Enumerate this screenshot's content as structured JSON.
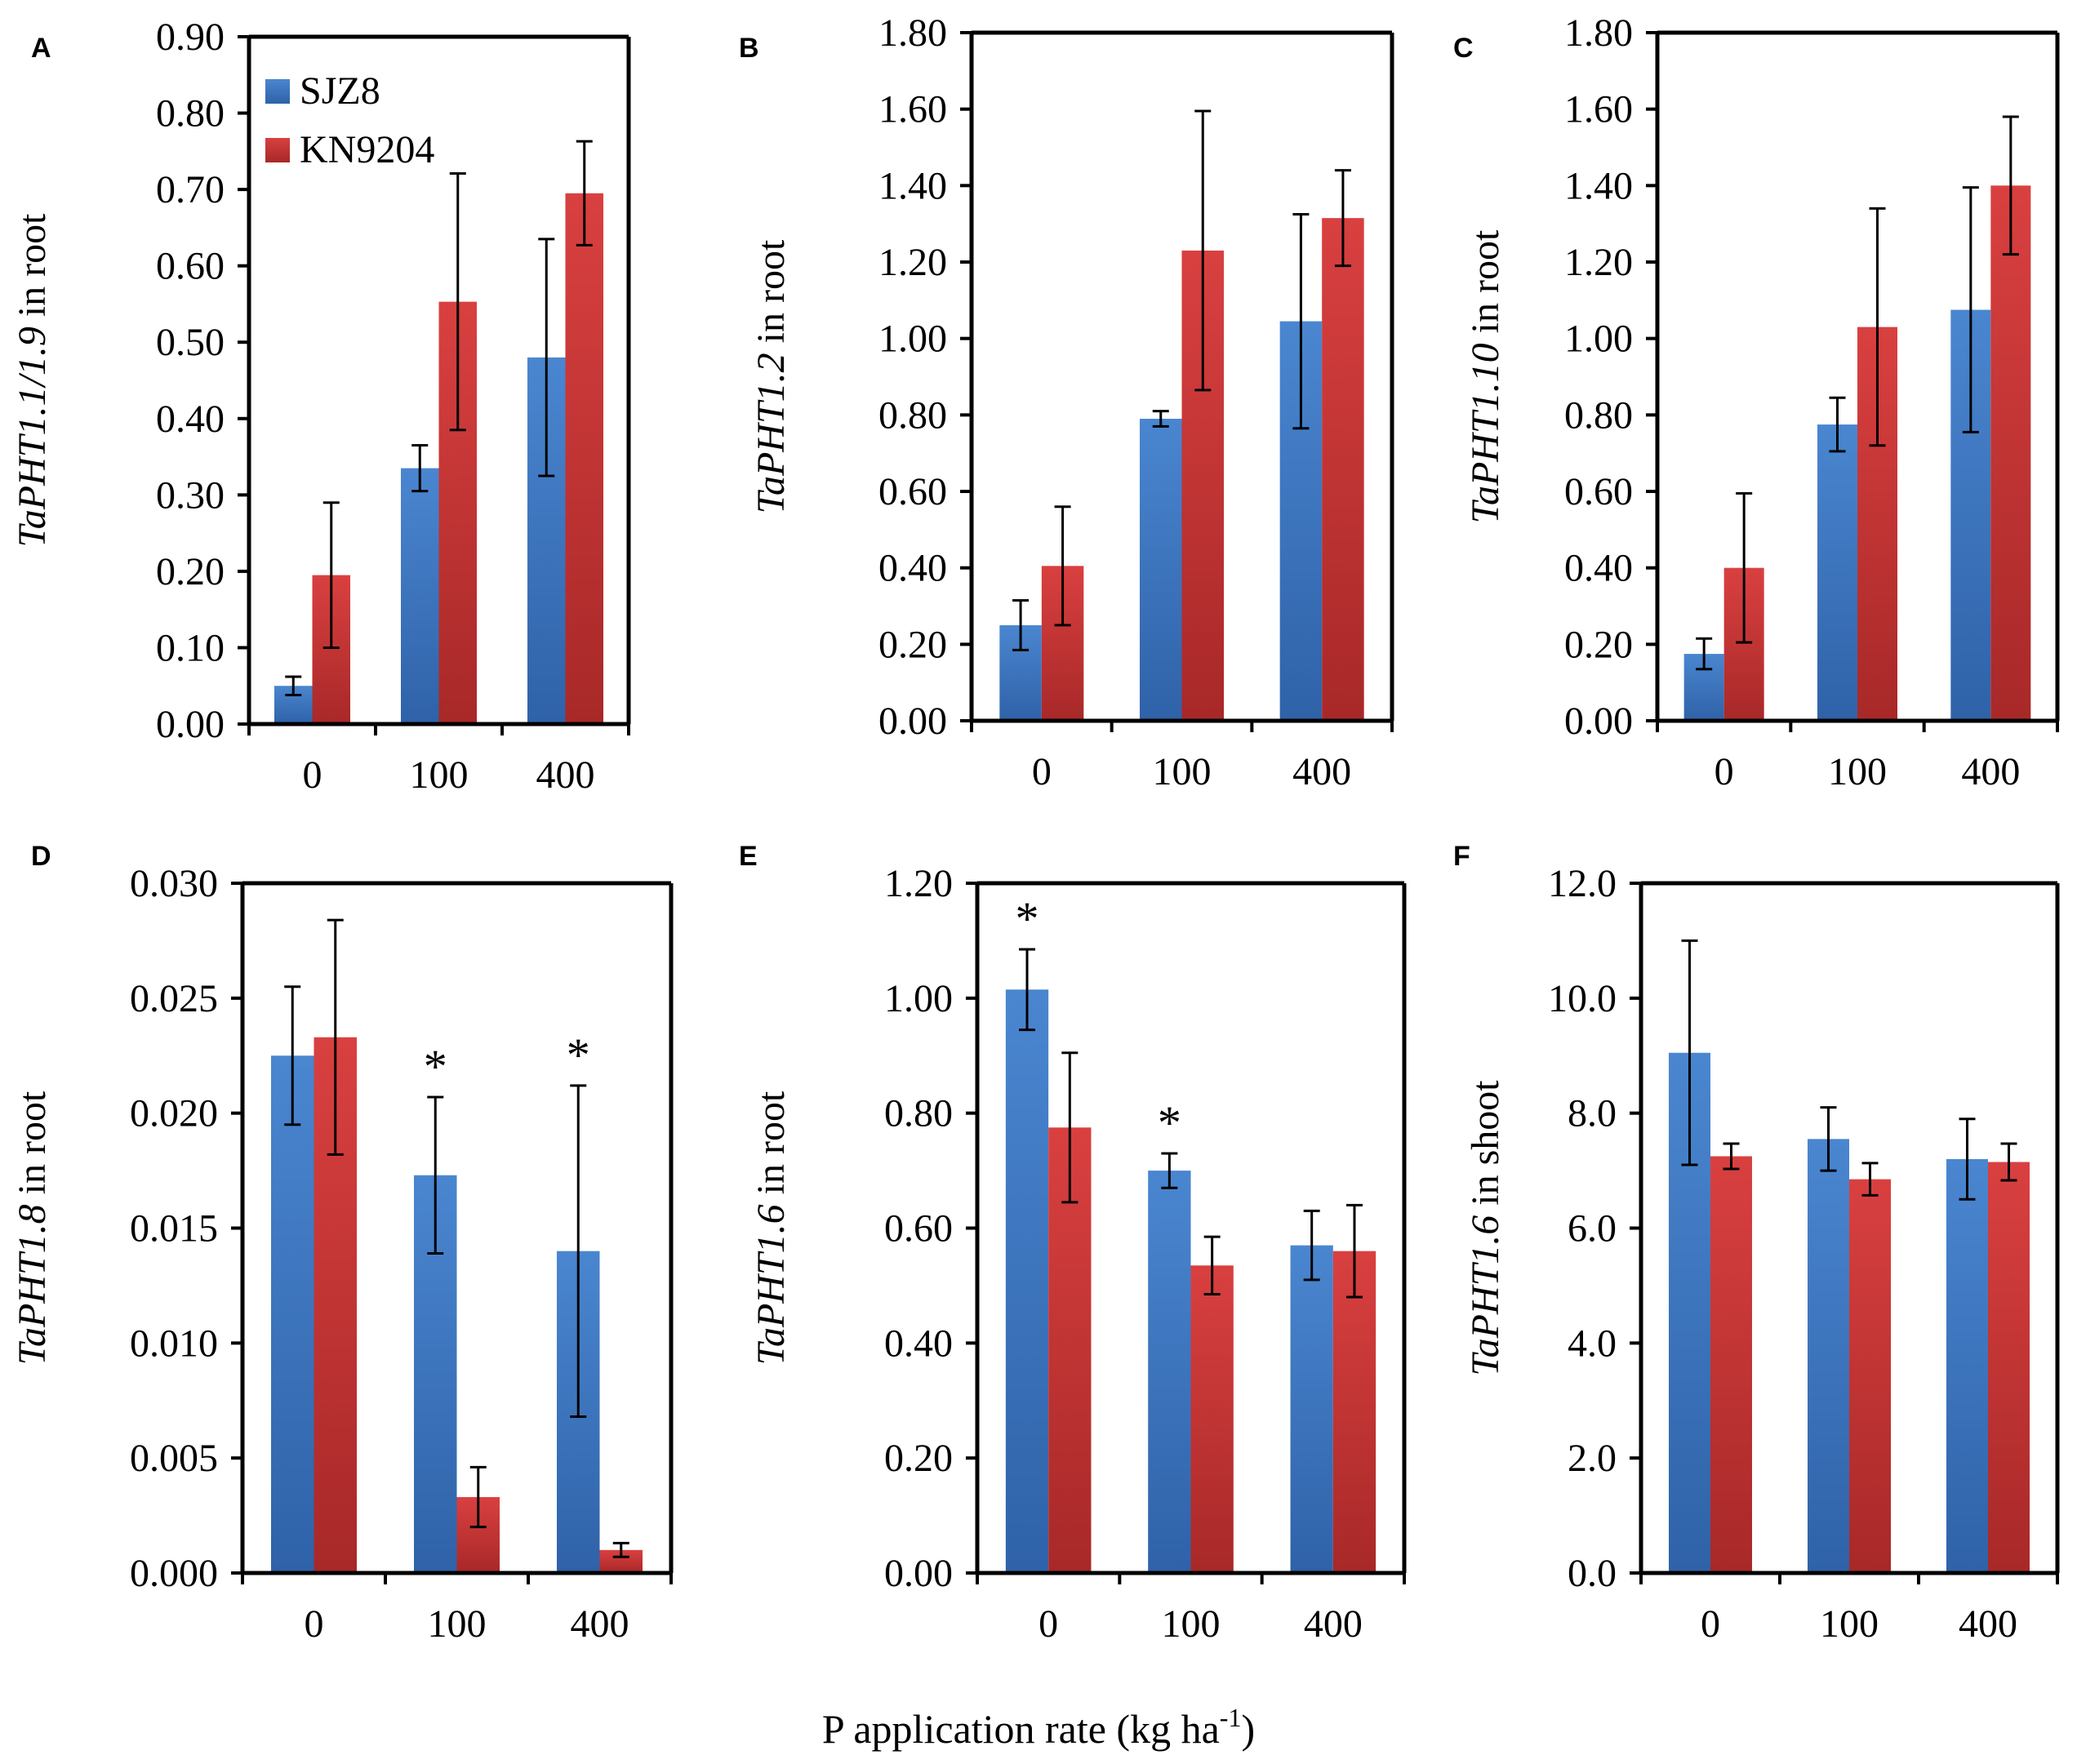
{
  "figure": {
    "xlabel": "P application rate (kg ha",
    "xlabel_sup": "-1",
    "xlabel_close": ")",
    "legend": [
      "SJZ8",
      "KN9204"
    ],
    "colors": {
      "SJZ8": "#3a78c4",
      "KN9204": "#cc3333"
    }
  },
  "chart_data": [
    {
      "type": "bar",
      "panel": "A",
      "ylabel_italic": "TaPHT1.1/1.9",
      "ylabel_rest": " in root",
      "categories": [
        "0",
        "100",
        "400"
      ],
      "ylim": [
        0,
        0.9
      ],
      "yticks": [
        "0.00",
        "0.10",
        "0.20",
        "0.30",
        "0.40",
        "0.50",
        "0.60",
        "0.70",
        "0.80",
        "0.90"
      ],
      "series": [
        {
          "name": "SJZ8",
          "values": [
            0.05,
            0.335,
            0.48
          ],
          "errors": [
            0.012,
            0.03,
            0.155
          ]
        },
        {
          "name": "KN9204",
          "values": [
            0.195,
            0.553,
            0.695
          ],
          "errors": [
            0.095,
            0.168,
            0.068
          ]
        }
      ],
      "significance": [],
      "legend": true
    },
    {
      "type": "bar",
      "panel": "B",
      "ylabel_italic": "TaPHT1.2",
      "ylabel_rest": " in root",
      "categories": [
        "0",
        "100",
        "400"
      ],
      "ylim": [
        0,
        1.8
      ],
      "yticks": [
        "0.00",
        "0.20",
        "0.40",
        "0.60",
        "0.80",
        "1.00",
        "1.20",
        "1.40",
        "1.60",
        "1.80"
      ],
      "series": [
        {
          "name": "SJZ8",
          "values": [
            0.25,
            0.79,
            1.045
          ],
          "errors": [
            0.065,
            0.02,
            0.28
          ]
        },
        {
          "name": "KN9204",
          "values": [
            0.405,
            1.23,
            1.315
          ],
          "errors": [
            0.155,
            0.365,
            0.125
          ]
        }
      ],
      "significance": [],
      "legend": false
    },
    {
      "type": "bar",
      "panel": "C",
      "ylabel_italic": "TaPHT1.10",
      "ylabel_rest": " in root",
      "categories": [
        "0",
        "100",
        "400"
      ],
      "ylim": [
        0,
        1.8
      ],
      "yticks": [
        "0.00",
        "0.20",
        "0.40",
        "0.60",
        "0.80",
        "1.00",
        "1.20",
        "1.40",
        "1.60",
        "1.80"
      ],
      "series": [
        {
          "name": "SJZ8",
          "values": [
            0.175,
            0.775,
            1.075
          ],
          "errors": [
            0.04,
            0.07,
            0.32
          ]
        },
        {
          "name": "KN9204",
          "values": [
            0.4,
            1.03,
            1.4
          ],
          "errors": [
            0.195,
            0.31,
            0.18
          ]
        }
      ],
      "significance": [],
      "legend": false
    },
    {
      "type": "bar",
      "panel": "D",
      "ylabel_italic": "TaPHT1.8",
      "ylabel_rest": "  in root",
      "categories": [
        "0",
        "100",
        "400"
      ],
      "ylim": [
        0,
        0.03
      ],
      "yticks": [
        "0.000",
        "0.005",
        "0.010",
        "0.015",
        "0.020",
        "0.025",
        "0.030"
      ],
      "series": [
        {
          "name": "SJZ8",
          "values": [
            0.0225,
            0.0173,
            0.014
          ],
          "errors": [
            0.003,
            0.0034,
            0.0072
          ]
        },
        {
          "name": "KN9204",
          "values": [
            0.0233,
            0.0033,
            0.001
          ],
          "errors": [
            0.0051,
            0.0013,
            0.0003
          ]
        }
      ],
      "significance": [
        {
          "category_index": 1,
          "series_index": 0,
          "label": "*"
        },
        {
          "category_index": 2,
          "series_index": 0,
          "label": "*"
        }
      ],
      "legend": false
    },
    {
      "type": "bar",
      "panel": "E",
      "ylabel_italic": "TaPHT1.6",
      "ylabel_rest": " in root",
      "categories": [
        "0",
        "100",
        "400"
      ],
      "ylim": [
        0,
        1.2
      ],
      "yticks": [
        "0.00",
        "0.20",
        "0.40",
        "0.60",
        "0.80",
        "1.00",
        "1.20"
      ],
      "series": [
        {
          "name": "SJZ8",
          "values": [
            1.015,
            0.7,
            0.57
          ],
          "errors": [
            0.07,
            0.03,
            0.06
          ]
        },
        {
          "name": "KN9204",
          "values": [
            0.775,
            0.535,
            0.56
          ],
          "errors": [
            0.13,
            0.05,
            0.08
          ]
        }
      ],
      "significance": [
        {
          "category_index": 0,
          "series_index": 0,
          "label": "*"
        },
        {
          "category_index": 1,
          "series_index": 0,
          "label": "*"
        }
      ],
      "legend": false
    },
    {
      "type": "bar",
      "panel": "F",
      "ylabel_italic": "TaPHT1.6",
      "ylabel_rest": " in shoot",
      "categories": [
        "0",
        "100",
        "400"
      ],
      "ylim": [
        0,
        12
      ],
      "yticks": [
        "0.0",
        "2.0",
        "4.0",
        "6.0",
        "8.0",
        "10.0",
        "12.0"
      ],
      "series": [
        {
          "name": "SJZ8",
          "values": [
            9.05,
            7.55,
            7.2
          ],
          "errors": [
            1.95,
            0.55,
            0.7
          ]
        },
        {
          "name": "KN9204",
          "values": [
            7.25,
            6.85,
            7.15
          ],
          "errors": [
            0.22,
            0.28,
            0.32
          ]
        }
      ],
      "significance": [],
      "legend": false
    }
  ]
}
